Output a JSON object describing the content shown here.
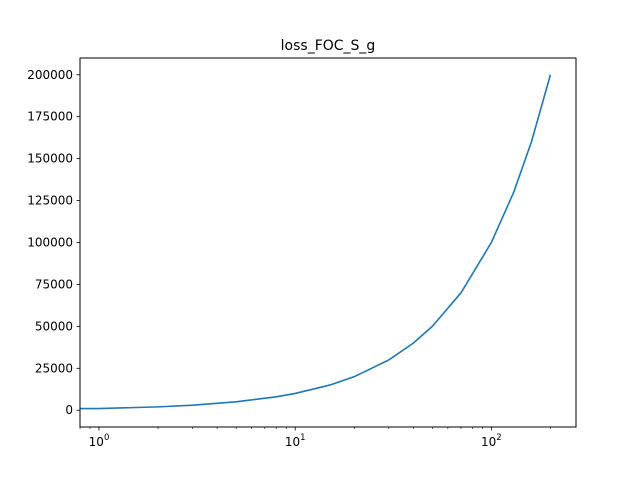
{
  "chart_data": {
    "type": "line",
    "title": "loss_FOC_S_g",
    "xlabel": "",
    "ylabel": "",
    "xscale": "log",
    "xlim": [
      0.8,
      270
    ],
    "ylim": [
      -10000,
      210000
    ],
    "grid": false,
    "x_ticks": [
      {
        "value": 1,
        "base": "10",
        "exp": "0"
      },
      {
        "value": 10,
        "base": "10",
        "exp": "1"
      },
      {
        "value": 100,
        "base": "10",
        "exp": "2"
      }
    ],
    "y_ticks": [
      {
        "value": 0,
        "label": "0"
      },
      {
        "value": 25000,
        "label": "25000"
      },
      {
        "value": 50000,
        "label": "50000"
      },
      {
        "value": 75000,
        "label": "75000"
      },
      {
        "value": 100000,
        "label": "100000"
      },
      {
        "value": 125000,
        "label": "125000"
      },
      {
        "value": 150000,
        "label": "150000"
      },
      {
        "value": 175000,
        "label": "175000"
      },
      {
        "value": 200000,
        "label": "200000"
      }
    ],
    "series": [
      {
        "name": "",
        "color": "#1f77b4",
        "x": [
          0.8,
          1,
          2,
          3,
          5,
          8,
          10,
          15,
          20,
          30,
          40,
          50,
          70,
          100,
          130,
          160,
          200
        ],
        "y": [
          1000,
          1000,
          2000,
          3000,
          5000,
          8000,
          10000,
          15000,
          20000,
          30000,
          40000,
          50000,
          70000,
          100000,
          130000,
          160000,
          200000
        ]
      }
    ]
  }
}
